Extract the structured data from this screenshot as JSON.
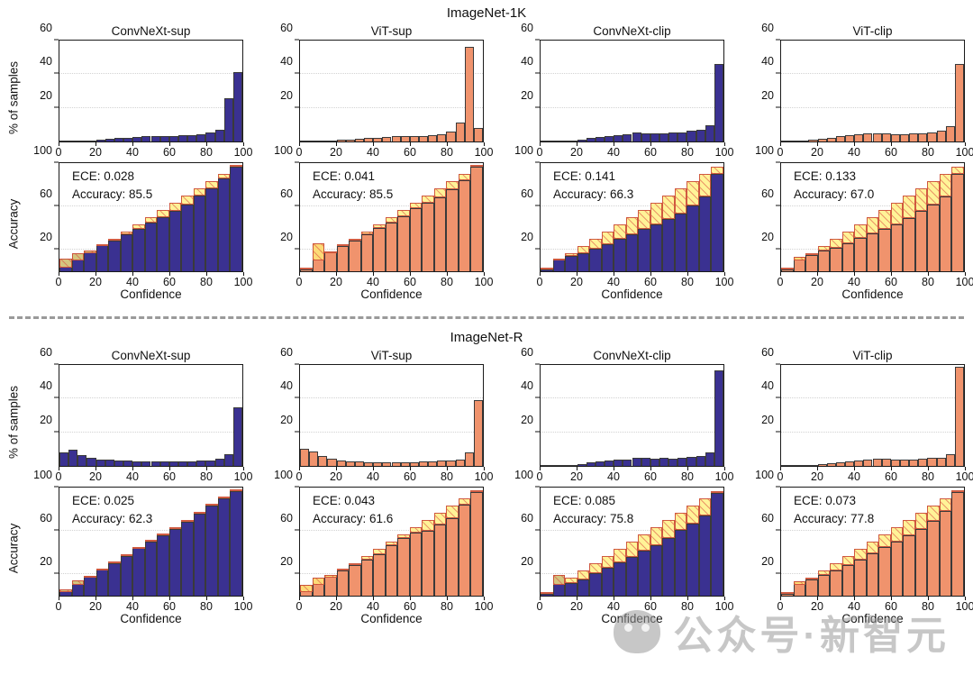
{
  "figure": {
    "watermark": {
      "icon": "wechat-icon",
      "text": "公众号·新智元"
    }
  },
  "axes": {
    "hist": {
      "ylabel": "% of samples",
      "ylim": [
        0,
        60
      ],
      "yticks": [
        20,
        40,
        60
      ],
      "xticks": [
        0,
        20,
        40,
        60,
        80,
        100
      ],
      "xlim": [
        0,
        100
      ]
    },
    "rel": {
      "ylabel": "Accuracy",
      "xlabel": "Confidence",
      "ylim": [
        0,
        100
      ],
      "yticks": [
        20,
        60,
        100
      ],
      "xticks": [
        0,
        20,
        40,
        60,
        80,
        100
      ],
      "xlim": [
        0,
        100
      ]
    }
  },
  "chart_data": {
    "type": "bar",
    "grid": "dotted-horizontal",
    "hist_bin_width": 5,
    "rel_bin_width": 6.6667,
    "rel_bin_centers": [
      3.3,
      10,
      16.7,
      23.3,
      30,
      36.7,
      43.3,
      50,
      56.7,
      63.3,
      70,
      76.7,
      83.3,
      90,
      96.7
    ],
    "colors": {
      "convnext_bar": "#3a3191",
      "vit_bar": "#f0936d",
      "bar_edge": "#3a3a3a",
      "gap_fill": "#fff07a",
      "gap_hatch": "#dc4b41",
      "gridline": "#d2d2d2"
    },
    "sections": [
      {
        "title": "ImageNet-1K",
        "models": [
          {
            "name": "ConvNeXt-sup",
            "color": "#3a3191",
            "histogram": [
              0.2,
              0.3,
              0.5,
              0.8,
              1.2,
              1.6,
              1.9,
              2.2,
              2.7,
              3.2,
              3.4,
              3.4,
              3.2,
              3.6,
              4.0,
              4.3,
              5.5,
              7.0,
              25.5,
              41
            ],
            "reliability": {
              "accuracy_per_bin": [
                12,
                17,
                19,
                24,
                28,
                34,
                39,
                45,
                50,
                56,
                62,
                70,
                77,
                86,
                97
              ],
              "ece_label": "ECE: 0.028",
              "accuracy_label": "Accuracy: 85.5"
            }
          },
          {
            "name": "ViT-sup",
            "color": "#f0936d",
            "histogram": [
              0.1,
              0.2,
              0.4,
              0.6,
              0.9,
              1.3,
              1.6,
              1.9,
              2.4,
              2.8,
              3.0,
              3.2,
              3.0,
              3.4,
              3.8,
              4.4,
              5.8,
              11,
              56,
              8
            ],
            "reliability": {
              "accuracy_per_bin": [
                2,
                26,
                18,
                23,
                28,
                34,
                40,
                45,
                51,
                58,
                63,
                68,
                76,
                84,
                97
              ],
              "ece_label": "ECE: 0.041",
              "accuracy_label": "Accuracy: 85.5"
            }
          },
          {
            "name": "ConvNeXt-clip",
            "color": "#3a3191",
            "histogram": [
              0.1,
              0.2,
              0.3,
              0.8,
              1.3,
              2.0,
              2.6,
              3.3,
              3.8,
              4.3,
              5.3,
              5.0,
              4.8,
              5.0,
              5.2,
              5.5,
              6.3,
              7.0,
              9.5,
              46
            ],
            "reliability": {
              "accuracy_per_bin": [
                2,
                12,
                14,
                17,
                21,
                25,
                30,
                34,
                39,
                43,
                48,
                53,
                61,
                69,
                90
              ],
              "ece_label": "ECE: 0.141",
              "accuracy_label": "Accuracy: 66.3"
            }
          },
          {
            "name": "ViT-clip",
            "color": "#f0936d",
            "histogram": [
              0.1,
              0.2,
              0.5,
              1.0,
              1.6,
              2.4,
              3.0,
              3.6,
              4.2,
              4.6,
              5.0,
              4.8,
              4.4,
              4.4,
              4.6,
              5.0,
              5.6,
              6.5,
              9.0,
              46
            ],
            "reliability": {
              "accuracy_per_bin": [
                2,
                13,
                15,
                19,
                22,
                26,
                31,
                35,
                39,
                43,
                49,
                56,
                62,
                69,
                90
              ],
              "ece_label": "ECE: 0.133",
              "accuracy_label": "Accuracy: 67.0"
            }
          }
        ]
      },
      {
        "title": "ImageNet-R",
        "models": [
          {
            "name": "ConvNeXt-sup",
            "color": "#3a3191",
            "histogram": [
              8,
              9.5,
              6.5,
              5,
              4,
              3.5,
              3,
              3,
              2.8,
              2.6,
              2.5,
              2.5,
              2.5,
              2.6,
              2.8,
              3,
              3.3,
              4.5,
              7,
              35
            ],
            "reliability": {
              "accuracy_per_bin": [
                6,
                14,
                18,
                25,
                30,
                37,
                44,
                50,
                56,
                62,
                68,
                76,
                83,
                90,
                97
              ],
              "ece_label": "ECE: 0.025",
              "accuracy_label": "Accuracy: 62.3"
            }
          },
          {
            "name": "ViT-sup",
            "color": "#f0936d",
            "histogram": [
              10,
              8.5,
              6,
              4.5,
              3.2,
              2.8,
              2.5,
              2.2,
              2.2,
              2.2,
              2.2,
              2.2,
              2.3,
              2.5,
              2.8,
              3,
              3.3,
              4,
              8,
              39
            ],
            "reliability": {
              "accuracy_per_bin": [
                10,
                17,
                19,
                23,
                28,
                33,
                38,
                47,
                53,
                58,
                60,
                66,
                72,
                84,
                96
              ],
              "ece_label": "ECE: 0.043",
              "accuracy_label": "Accuracy: 61.6"
            }
          },
          {
            "name": "ConvNeXt-clip",
            "color": "#3a3191",
            "histogram": [
              0.1,
              0.2,
              0.3,
              0.7,
              1.3,
              2.0,
              2.6,
              3.2,
              3.6,
              4.0,
              4.6,
              4.6,
              4.4,
              4.6,
              4.4,
              4.6,
              5.5,
              6.0,
              8,
              57
            ],
            "reliability": {
              "accuracy_per_bin": [
                2,
                19,
                12,
                15,
                21,
                26,
                31,
                36,
                42,
                47,
                53,
                61,
                67,
                74,
                95
              ],
              "ece_label": "ECE: 0.085",
              "accuracy_label": "Accuracy: 75.8"
            }
          },
          {
            "name": "ViT-clip",
            "color": "#f0936d",
            "histogram": [
              0.1,
              0.2,
              0.3,
              0.6,
              1.1,
              1.8,
              2.3,
              2.8,
              3.2,
              3.6,
              4.2,
              4.2,
              4.0,
              3.8,
              4.0,
              4.4,
              4.6,
              5.0,
              7,
              59
            ],
            "reliability": {
              "accuracy_per_bin": [
                2,
                13,
                15,
                19,
                23,
                28,
                33,
                39,
                45,
                50,
                56,
                62,
                69,
                78,
                96
              ],
              "ece_label": "ECE: 0.073",
              "accuracy_label": "Accuracy: 77.8"
            }
          }
        ]
      }
    ]
  }
}
